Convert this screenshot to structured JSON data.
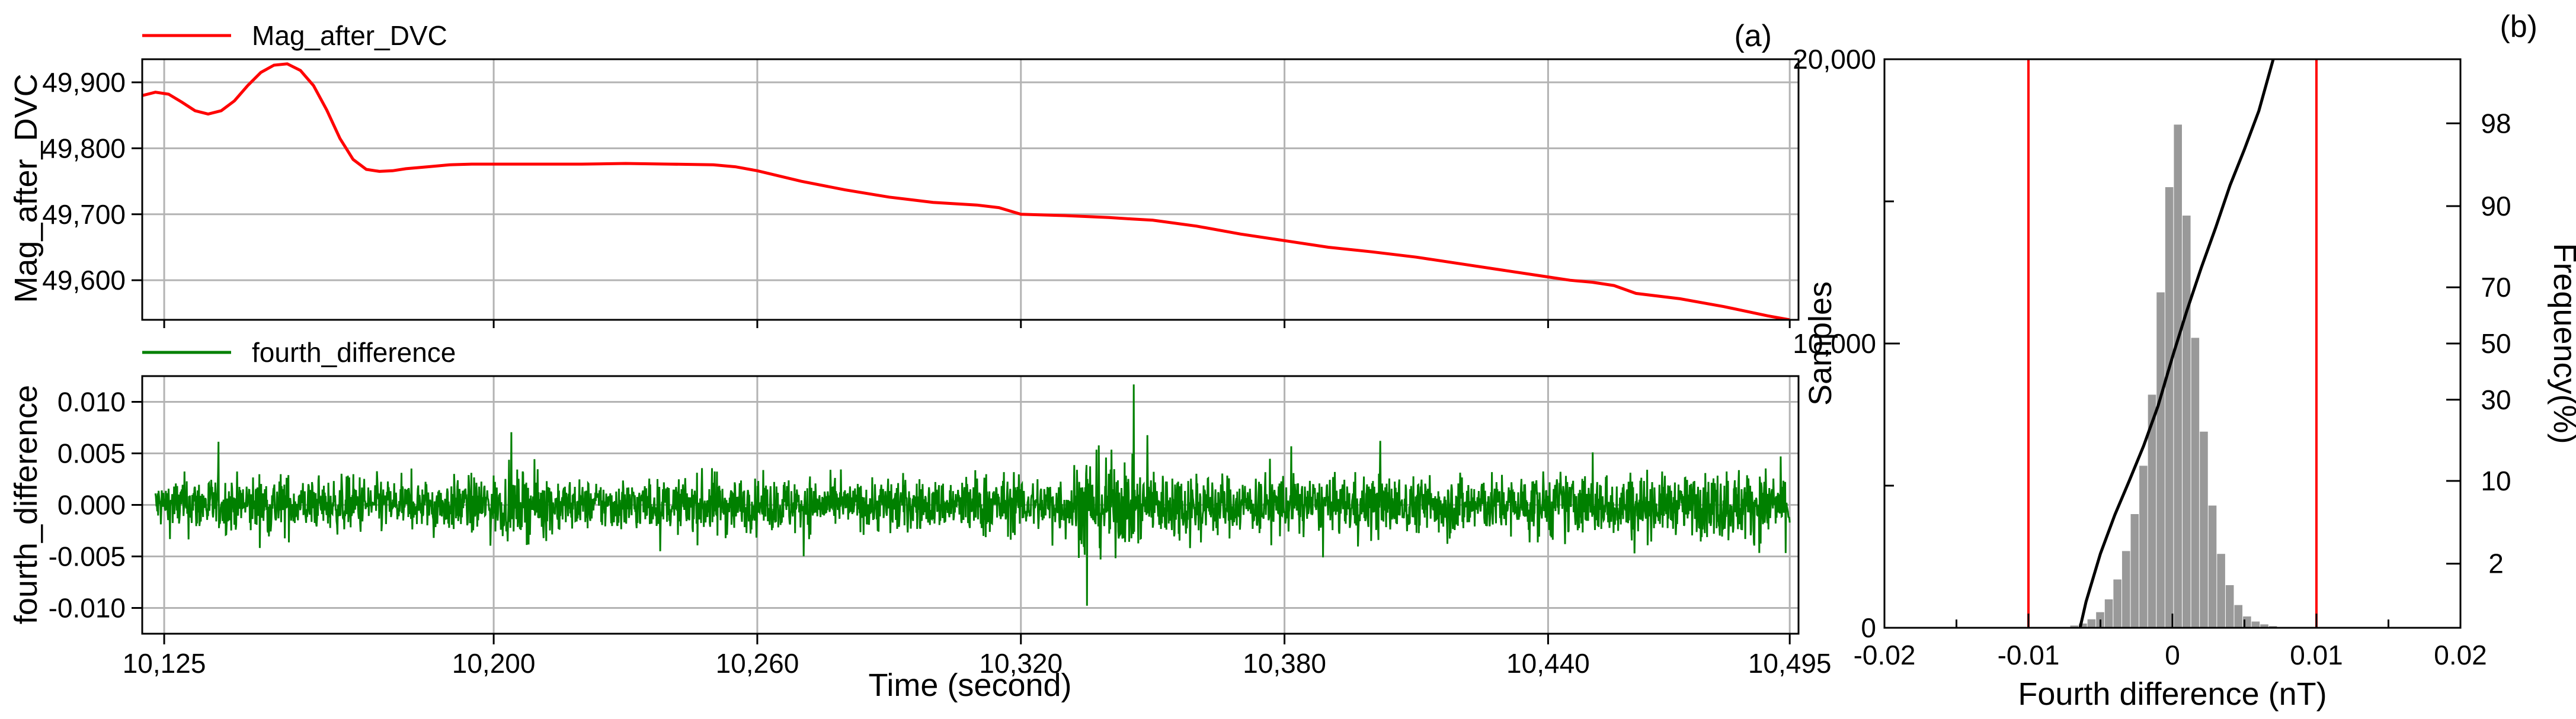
{
  "chart_data": [
    {
      "panel_label": "(a)",
      "type": "line",
      "series": [
        {
          "name": "Mag_after_DVC",
          "color": "#ff0000"
        }
      ],
      "ylabel": "Mag_after_DVC",
      "ylim": [
        49540,
        49935
      ],
      "xlim": [
        10120,
        10497
      ],
      "y_ticks": [
        49600,
        49700,
        49800,
        49900
      ],
      "y_tick_labels": [
        "49,600",
        "49,700",
        "49,800",
        "49,900"
      ],
      "grid": true,
      "legend": "top-left",
      "x": [
        10120,
        10123,
        10126,
        10129,
        10132,
        10135,
        10138,
        10141,
        10144,
        10147,
        10150,
        10153,
        10156,
        10159,
        10162,
        10165,
        10168,
        10171,
        10174,
        10177,
        10180,
        10185,
        10190,
        10195,
        10200,
        10210,
        10220,
        10230,
        10240,
        10250,
        10255,
        10260,
        10270,
        10280,
        10290,
        10300,
        10310,
        10315,
        10320,
        10330,
        10340,
        10345,
        10350,
        10360,
        10370,
        10380,
        10390,
        10400,
        10410,
        10420,
        10430,
        10440,
        10445,
        10450,
        10455,
        10460,
        10470,
        10480,
        10490,
        10495
      ],
      "y": [
        49880,
        49885,
        49882,
        49870,
        49857,
        49852,
        49857,
        49872,
        49895,
        49915,
        49926,
        49928,
        49918,
        49895,
        49858,
        49815,
        49783,
        49768,
        49765,
        49766,
        49769,
        49772,
        49775,
        49776,
        49776,
        49776,
        49776,
        49777,
        49776,
        49775,
        49772,
        49766,
        49750,
        49737,
        49726,
        49718,
        49714,
        49710,
        49700,
        49698,
        49695,
        49693,
        49691,
        49682,
        49670,
        49660,
        49650,
        49643,
        49635,
        49625,
        49615,
        49605,
        49600,
        49597,
        49592,
        49580,
        49572,
        49560,
        49546,
        49540
      ]
    },
    {
      "type": "line",
      "series": [
        {
          "name": "fourth_difference",
          "color": "#008000"
        }
      ],
      "xlabel": "Time (second)",
      "ylabel": "fourth_difference",
      "ylim": [
        -0.0125,
        0.0125
      ],
      "xlim": [
        10120,
        10497
      ],
      "x_ticks": [
        10125,
        10200,
        10260,
        10320,
        10380,
        10440,
        10495
      ],
      "x_tick_labels": [
        "10,125",
        "10,200",
        "10,260",
        "10,320",
        "10,380",
        "10,440",
        "10,495"
      ],
      "y_ticks": [
        0.01,
        0.005,
        0.0,
        -0.005,
        -0.01
      ],
      "y_tick_labels": [
        "0.010",
        "0.005",
        "0.000",
        "-0.005",
        "-0.010"
      ],
      "grid": true,
      "legend": "top-left",
      "noise_envelope_x": [
        10120,
        10130,
        10140,
        10150,
        10160,
        10170,
        10180,
        10190,
        10200,
        10210,
        10220,
        10230,
        10240,
        10250,
        10260,
        10270,
        10280,
        10290,
        10300,
        10310,
        10320,
        10330,
        10335,
        10340,
        10350,
        10360,
        10370,
        10380,
        10390,
        10400,
        10410,
        10420,
        10430,
        10440,
        10450,
        10460,
        10470,
        10480,
        10490,
        10497
      ],
      "noise_envelope_amplitude": [
        0.003,
        0.0045,
        0.004,
        0.0048,
        0.0035,
        0.0045,
        0.0035,
        0.004,
        0.0045,
        0.005,
        0.0035,
        0.004,
        0.0035,
        0.005,
        0.0035,
        0.0045,
        0.003,
        0.0045,
        0.0035,
        0.005,
        0.004,
        0.0045,
        0.008,
        0.007,
        0.005,
        0.0055,
        0.004,
        0.005,
        0.0035,
        0.005,
        0.004,
        0.005,
        0.004,
        0.005,
        0.0045,
        0.005,
        0.004,
        0.0055,
        0.005,
        0.006
      ]
    },
    {
      "panel_label": "(b)",
      "type": "bar",
      "xlabel": "Fourth difference (nT)",
      "ylabel": "Samples",
      "ylabel_right": "Frequency(%)",
      "xlim": [
        -0.02,
        0.02
      ],
      "ylim": [
        0,
        20000
      ],
      "x_ticks": [
        -0.02,
        -0.01,
        0,
        0.01,
        0.02
      ],
      "x_tick_labels": [
        "-0.02",
        "-0.01",
        "0",
        "0.01",
        "0.02"
      ],
      "y_ticks": [
        0,
        10000,
        20000
      ],
      "y_tick_labels": [
        "0",
        "10,000",
        "20,000"
      ],
      "right_ticks": [
        2,
        10,
        30,
        50,
        70,
        90,
        98
      ],
      "right_tick_labels": [
        "2",
        "10",
        "30",
        "50",
        "70",
        "90",
        "98"
      ],
      "bar_color": "#999999",
      "bin_centers": [
        -0.0068,
        -0.0062,
        -0.0056,
        -0.005,
        -0.0044,
        -0.0038,
        -0.0032,
        -0.0026,
        -0.002,
        -0.0014,
        -0.0008,
        -0.0002,
        0.0004,
        0.001,
        0.0016,
        0.0022,
        0.0028,
        0.0034,
        0.004,
        0.0046,
        0.0052,
        0.0058,
        0.0064,
        0.007
      ],
      "values": [
        80,
        150,
        300,
        550,
        1000,
        1700,
        2700,
        4000,
        5700,
        8200,
        11800,
        15500,
        17700,
        14500,
        10200,
        6900,
        4300,
        2600,
        1500,
        800,
        400,
        220,
        120,
        60
      ],
      "cumulative_curve": {
        "color": "#000000",
        "x": [
          -0.0068,
          -0.006,
          -0.005,
          -0.004,
          -0.003,
          -0.002,
          -0.001,
          0,
          0.001,
          0.002,
          0.003,
          0.004,
          0.005,
          0.006,
          0.007
        ],
        "percent": [
          0.2,
          0.8,
          2.5,
          5.5,
          10,
          17,
          28,
          45,
          62,
          76,
          86,
          93,
          96.5,
          98.5,
          99.6
        ]
      },
      "threshold_lines": {
        "color": "#ff0000",
        "x": [
          -0.01,
          0.01
        ]
      }
    }
  ]
}
